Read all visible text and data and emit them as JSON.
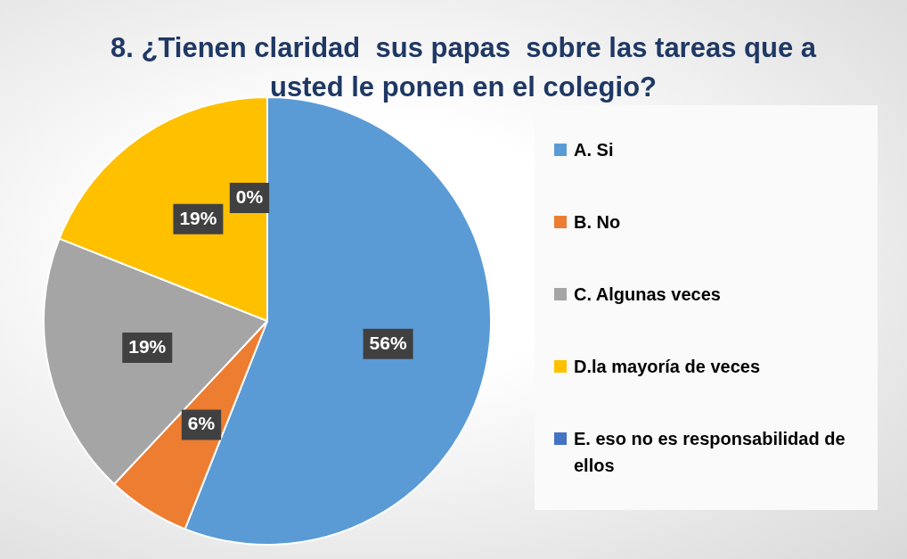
{
  "chart_data": {
    "type": "pie",
    "title": "8. ¿Tienen claridad  sus papas  sobre las tareas que a usted le ponen en el colegio?",
    "categories": [
      "A. Si",
      "B. No",
      "C. Algunas veces",
      "D.la mayoría de veces",
      "E. eso no es responsabilidad de ellos"
    ],
    "values": [
      56,
      6,
      19,
      19,
      0
    ],
    "colors": [
      "#5b9bd5",
      "#ed7d31",
      "#a5a5a5",
      "#ffc000",
      "#4472c4"
    ],
    "value_labels": [
      "56%",
      "6%",
      "19%",
      "19%",
      "0%"
    ],
    "legend": "right"
  }
}
